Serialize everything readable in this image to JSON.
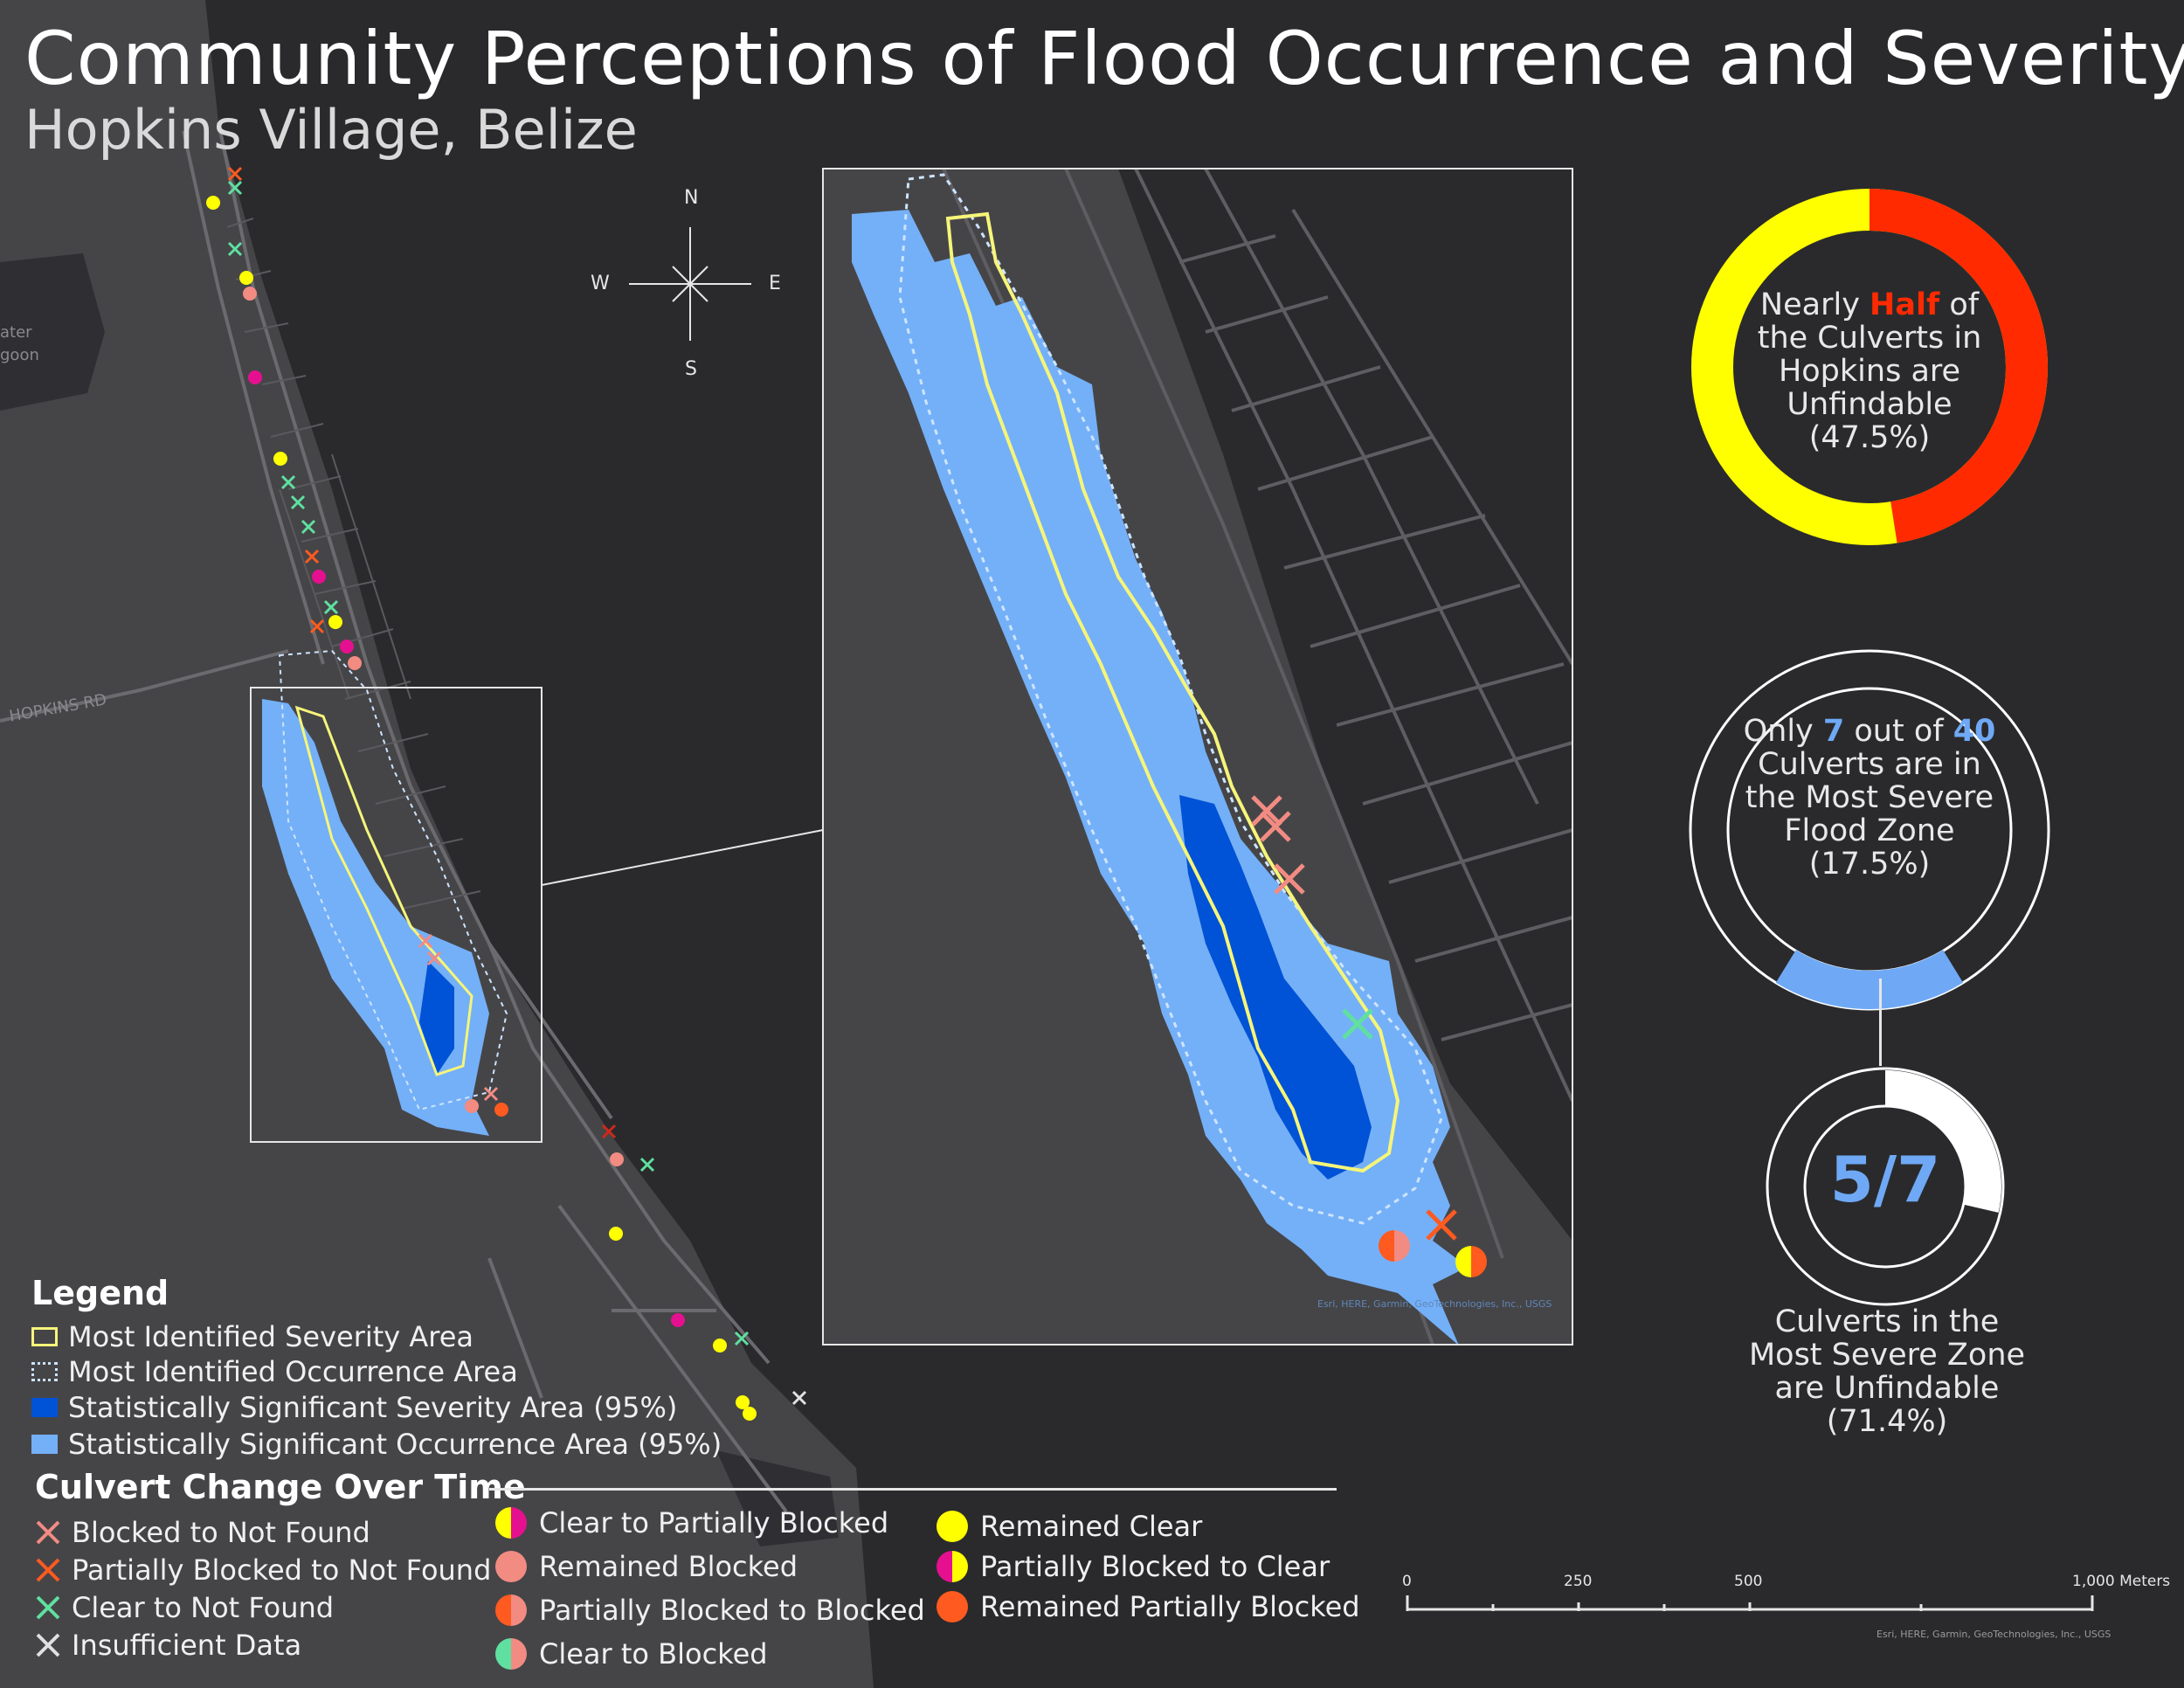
{
  "title": "Community Perceptions of Flood Occurrence and Severity:",
  "subtitle": "Hopkins Village, Belize",
  "map_labels": {
    "road": "HOPKINS RD",
    "water_line1": "ater",
    "water_line2": "goon"
  },
  "compass": {
    "n": "N",
    "s": "S",
    "e": "E",
    "w": "W"
  },
  "stat_unfindable": {
    "pre": "Nearly ",
    "highlight": "Half",
    "post": " of the Culverts in Hopkins are Unfindable",
    "percent": "(47.5%)",
    "fraction": 0.475,
    "colors": {
      "unfindable": "#ff2a00",
      "found": "#ffff00"
    }
  },
  "stat_severe": {
    "pre": "Only ",
    "count": "7",
    "mid": " out of ",
    "total": "40",
    "post": " Culverts are in the Most Severe Flood Zone",
    "percent": "(17.5%)",
    "fraction": 0.175
  },
  "stat_severe_unfindable": {
    "ratio": "5/7",
    "caption": "Culverts in the Most Severe Zone are Unfindable",
    "percent": "(71.4%)",
    "fraction": 0.714
  },
  "legend": {
    "heading": "Legend",
    "areas": [
      {
        "label": "Most Identified Severity Area",
        "icon": "yellow-outline-square"
      },
      {
        "label": "Most Identified Occurrence Area",
        "icon": "dotted-outline-square"
      },
      {
        "label": "Statistically Significant Severity Area (95%)",
        "icon": "dark-blue-square"
      },
      {
        "label": "Statistically Significant Occurrence Area (95%)",
        "icon": "light-blue-square"
      }
    ],
    "culvert_heading": "Culvert Change Over Time",
    "culverts_col1": [
      {
        "label": "Blocked to Not Found",
        "color": "#f28b82",
        "icon": "x-icon"
      },
      {
        "label": "Partially Blocked to Not Found",
        "color": "#ff5a1f",
        "icon": "x-icon"
      },
      {
        "label": "Clear to Not Found",
        "color": "#5fe0a0",
        "icon": "x-icon"
      },
      {
        "label": "Insufficient Data",
        "color": "#e0e0e0",
        "icon": "x-icon"
      }
    ],
    "culverts_col2": [
      {
        "label": "Clear to Partially Blocked",
        "left": "#ffff00",
        "right": "#e5108f"
      },
      {
        "label": "Remained Blocked",
        "left": "#f28b82",
        "right": "#f28b82"
      },
      {
        "label": "Partially Blocked to Blocked",
        "left": "#ff5a1f",
        "right": "#f28b82"
      },
      {
        "label": "Clear to Blocked",
        "left": "#5fe0a0",
        "right": "#f28b82"
      }
    ],
    "culverts_col3": [
      {
        "label": "Remained Clear",
        "left": "#ffff00",
        "right": "#ffff00"
      },
      {
        "label": "Partially Blocked to Clear",
        "left": "#e5108f",
        "right": "#ffff00"
      },
      {
        "label": "Remained Partially Blocked",
        "left": "#ff5a1f",
        "right": "#ff5a1f"
      }
    ]
  },
  "scale_bar": {
    "ticks": [
      "0",
      "250",
      "500",
      "1,000 Meters"
    ]
  },
  "attribution": "Esri, HERE, Garmin, GeoTechnologies, Inc., USGS"
}
